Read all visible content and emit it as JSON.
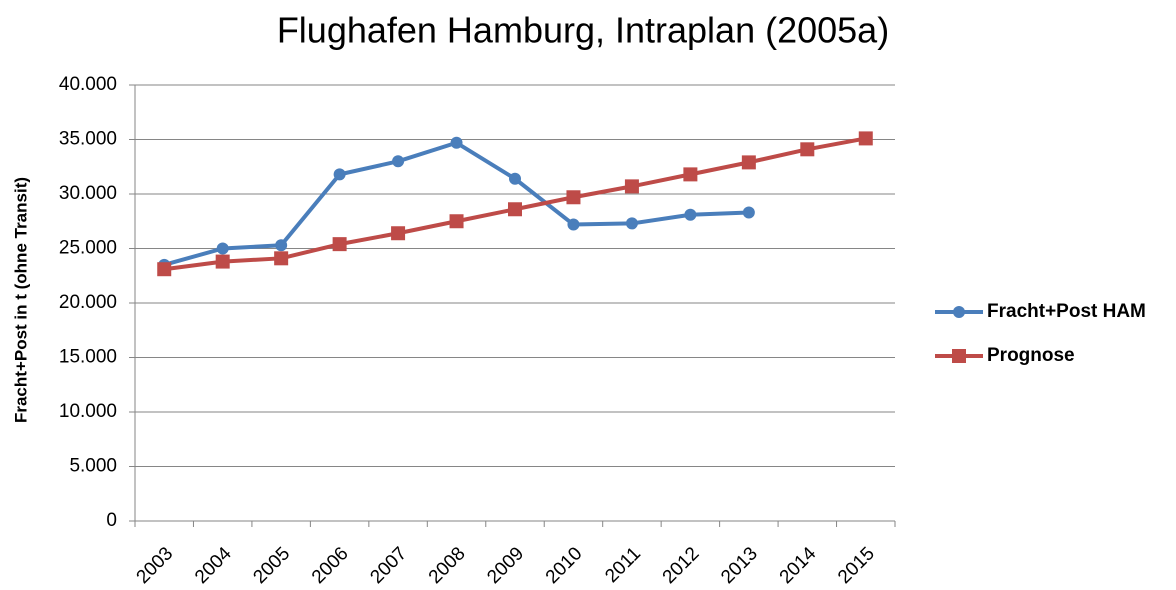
{
  "chart_data": {
    "type": "line",
    "title": "Flughafen Hamburg, Intraplan (2005a)",
    "y_label": "Fracht+Post in t (ohne Transit)",
    "categories": [
      "2003",
      "2004",
      "2005",
      "2006",
      "2007",
      "2008",
      "2009",
      "2010",
      "2011",
      "2012",
      "2013",
      "2014",
      "2015"
    ],
    "series": [
      {
        "name": "Fracht+Post HAM",
        "color": "#4a7ebb",
        "marker": "circle",
        "values": [
          23500,
          25000,
          25300,
          31800,
          33000,
          34700,
          31400,
          27200,
          27300,
          28100,
          28300,
          null,
          null
        ]
      },
      {
        "name": "Prognose",
        "color": "#be4b48",
        "marker": "square",
        "values": [
          23100,
          23800,
          24100,
          25400,
          26400,
          27500,
          28600,
          29700,
          30700,
          31800,
          32900,
          34100,
          35100
        ]
      }
    ],
    "ylim": [
      0,
      40000
    ],
    "yticks": [
      0,
      {
        "value": 5000,
        "label": "5.000"
      },
      {
        "value": 10000,
        "label": "10.000"
      },
      {
        "value": 15000,
        "label": "15.000"
      },
      {
        "value": 20000,
        "label": "20.000"
      },
      {
        "value": 25000,
        "label": "25.000"
      },
      {
        "value": 30000,
        "label": "30.000"
      },
      {
        "value": 35000,
        "label": "35.000"
      },
      {
        "value": 40000,
        "label": "40.000"
      }
    ],
    "grid": true,
    "legend": "right"
  }
}
